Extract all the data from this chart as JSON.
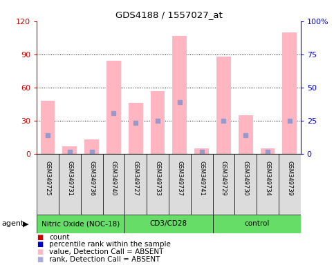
{
  "title": "GDS4188 / 1557027_at",
  "samples": [
    "GSM349725",
    "GSM349731",
    "GSM349736",
    "GSM349740",
    "GSM349727",
    "GSM349733",
    "GSM349737",
    "GSM349741",
    "GSM349729",
    "GSM349730",
    "GSM349734",
    "GSM349739"
  ],
  "group_labels": [
    "Nitric Oxide (NOC-18)",
    "CD3/CD28",
    "control"
  ],
  "group_sizes": [
    4,
    4,
    4
  ],
  "pink_bars": [
    48,
    7,
    13,
    84,
    46,
    57,
    107,
    5,
    88,
    35,
    5,
    110
  ],
  "blue_markers": [
    17,
    2,
    2,
    37,
    28,
    30,
    47,
    2,
    30,
    17,
    2,
    30
  ],
  "ylim_left": [
    0,
    120
  ],
  "ylim_right": [
    0,
    100
  ],
  "yticks_left": [
    0,
    30,
    60,
    90,
    120
  ],
  "yticks_right": [
    0,
    25,
    50,
    75,
    100
  ],
  "ytick_labels_left": [
    "0",
    "30",
    "60",
    "90",
    "120"
  ],
  "ytick_labels_right": [
    "0",
    "25",
    "50",
    "75",
    "100%"
  ],
  "legend_items": [
    {
      "label": "count",
      "color": "#cc0000"
    },
    {
      "label": "percentile rank within the sample",
      "color": "#0000cc"
    },
    {
      "label": "value, Detection Call = ABSENT",
      "color": "#FFB6C1"
    },
    {
      "label": "rank, Detection Call = ABSENT",
      "color": "#AAAADD"
    }
  ],
  "bar_color": "#FFB6C1",
  "marker_color": "#9999CC",
  "left_axis_color": "#cc0000",
  "right_axis_color": "#0000cc",
  "bg_color": "#DCDCDC",
  "green_color": "#66DD66",
  "agent_label": "agent"
}
